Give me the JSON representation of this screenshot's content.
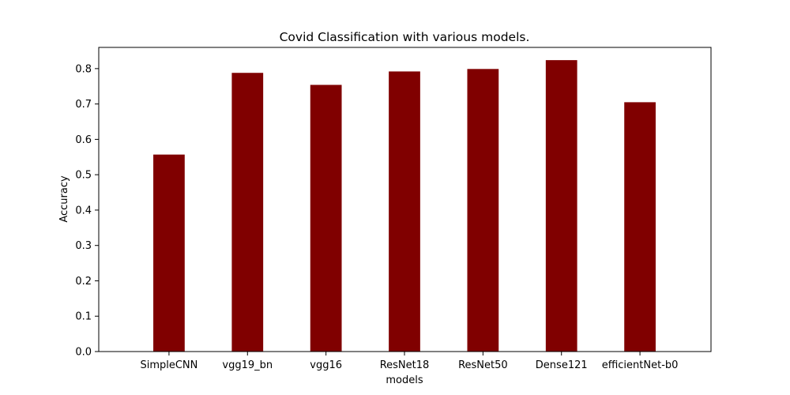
{
  "chart_data": {
    "type": "bar",
    "title": "Covid Classification with various models.",
    "xlabel": "models",
    "ylabel": "Accuracy",
    "categories": [
      "SimpleCNN",
      "vgg19_bn",
      "vgg16",
      "ResNet18",
      "ResNet50",
      "Dense121",
      "efficientNet-b0"
    ],
    "values": [
      0.557,
      0.788,
      0.754,
      0.792,
      0.799,
      0.824,
      0.705
    ],
    "ylim": [
      0,
      0.86
    ],
    "yticks": [
      0.0,
      0.1,
      0.2,
      0.3,
      0.4,
      0.5,
      0.6,
      0.7,
      0.8
    ],
    "ytick_labels": [
      "0.0",
      "0.1",
      "0.2",
      "0.3",
      "0.4",
      "0.5",
      "0.6",
      "0.7",
      "0.8"
    ],
    "bar_color": "#800000",
    "grid": false,
    "legend": "none"
  }
}
